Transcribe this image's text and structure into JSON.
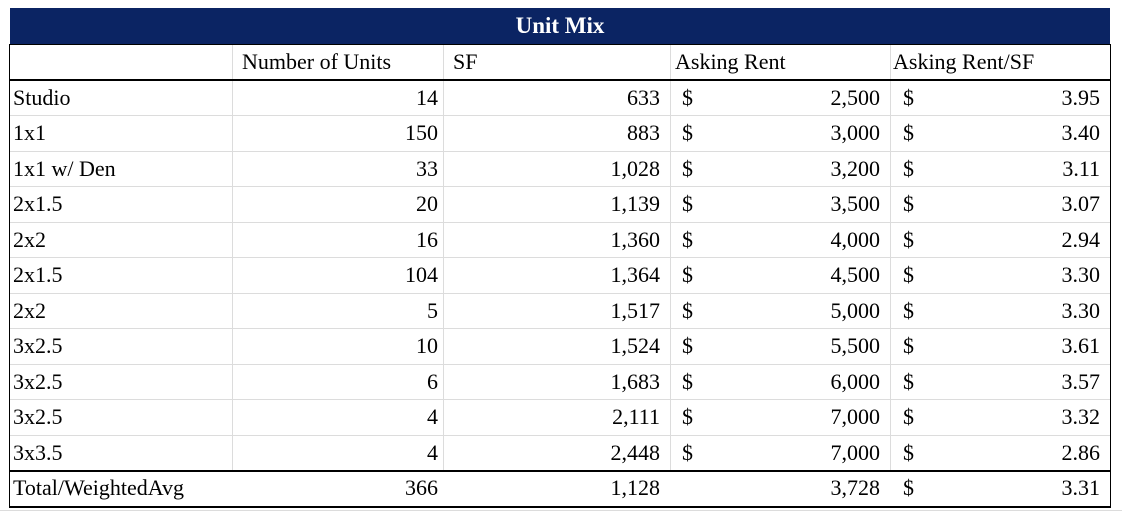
{
  "title": "Unit Mix",
  "headers": [
    "Number of Units",
    "SF",
    "Asking Rent",
    "Asking Rent/SF"
  ],
  "currency_symbol": "$",
  "rows": [
    [
      "Studio",
      "14",
      "633",
      "2,500",
      "3.95"
    ],
    [
      "1x1",
      "150",
      "883",
      "3,000",
      "3.40"
    ],
    [
      "1x1 w/ Den",
      "33",
      "1,028",
      "3,200",
      "3.11"
    ],
    [
      "2x1.5",
      "20",
      "1,139",
      "3,500",
      "3.07"
    ],
    [
      "2x2",
      "16",
      "1,360",
      "4,000",
      "2.94"
    ],
    [
      "2x1.5",
      "104",
      "1,364",
      "4,500",
      "3.30"
    ],
    [
      "2x2",
      "5",
      "1,517",
      "5,000",
      "3.30"
    ],
    [
      "3x2.5",
      "10",
      "1,524",
      "5,500",
      "3.61"
    ],
    [
      "3x2.5",
      "6",
      "1,683",
      "6,000",
      "3.57"
    ],
    [
      "3x2.5",
      "4",
      "2,111",
      "7,000",
      "3.32"
    ],
    [
      "3x3.5",
      "4",
      "2,448",
      "7,000",
      "2.86"
    ]
  ],
  "total": [
    "Total/WeightedAvg",
    "366",
    "1,128",
    "3,728",
    "3.31"
  ]
}
